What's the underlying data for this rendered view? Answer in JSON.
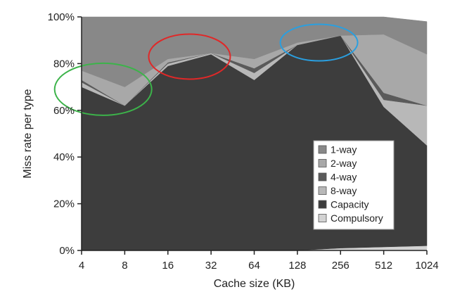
{
  "chart_data": {
    "type": "area",
    "stacked": true,
    "title": "",
    "xlabel": "Cache size (KB)",
    "ylabel": "Miss rate per type",
    "categories": [
      "4",
      "8",
      "16",
      "32",
      "64",
      "128",
      "256",
      "512",
      "1024"
    ],
    "ylim": [
      0,
      100
    ],
    "yticks": [
      "0%",
      "20%",
      "40%",
      "60%",
      "80%",
      "100%"
    ],
    "grid": false,
    "legend_position": "bottom-right",
    "series": [
      {
        "name": "Compulsory",
        "color": "#d3d3d3",
        "values": [
          0,
          0,
          0,
          0,
          0,
          0,
          1,
          1.5,
          2
        ]
      },
      {
        "name": "Capacity",
        "color": "#3d3d3d",
        "values": [
          70,
          62,
          79,
          84,
          73,
          88,
          91,
          60,
          43
        ]
      },
      {
        "name": "8-way",
        "color": "#b8b8b8",
        "values": [
          2,
          0,
          1,
          0.5,
          3,
          0,
          0,
          3,
          17
        ]
      },
      {
        "name": "4-way",
        "color": "#5a5a5a",
        "values": [
          1,
          0,
          0.5,
          0,
          2,
          0,
          0,
          3,
          0
        ]
      },
      {
        "name": "2-way",
        "color": "#a8a8a8",
        "values": [
          4,
          8,
          1.5,
          0,
          4,
          1,
          0,
          25,
          22
        ]
      },
      {
        "name": "1-way",
        "color": "#888888",
        "values": [
          23,
          30,
          18,
          15.5,
          18,
          11,
          8,
          7.5,
          14
        ]
      }
    ],
    "annotations": [
      {
        "type": "ellipse",
        "color": "#3cb34a",
        "x_center": 0.5,
        "y_center": 69
      },
      {
        "type": "ellipse",
        "color": "#e02828",
        "x_center": 2.5,
        "y_center": 83
      },
      {
        "type": "ellipse",
        "color": "#2a9fe0",
        "x_center": 5.5,
        "y_center": 89
      }
    ]
  }
}
